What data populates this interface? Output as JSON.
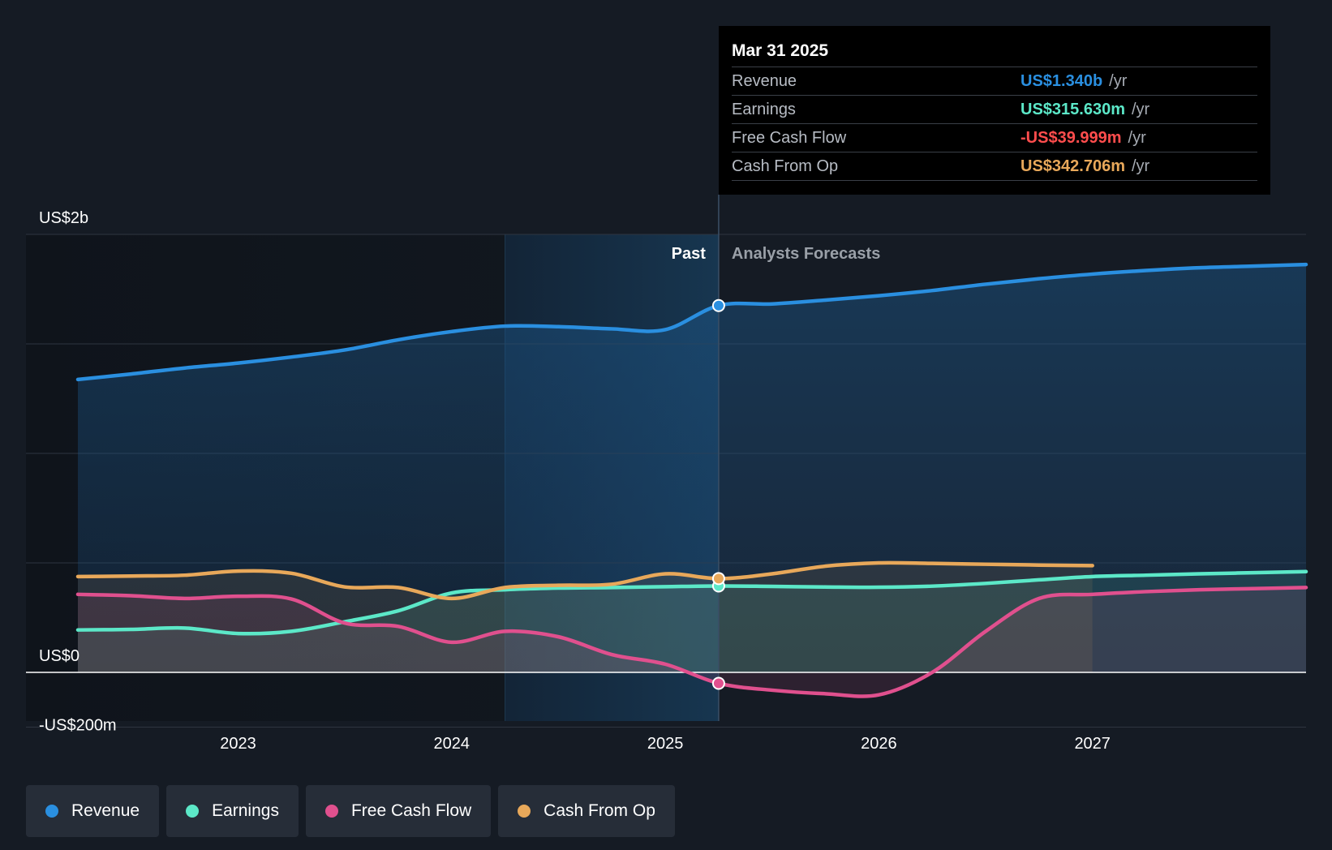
{
  "chart_data": {
    "type": "line",
    "x_unit": "year",
    "y_unit": "US$ millions",
    "ylim": [
      -200,
      1600
    ],
    "y_tick_labels": [
      {
        "value": 1600,
        "label": "US$2b"
      },
      {
        "value": 0,
        "label": "US$0"
      },
      {
        "value": -200,
        "label": "-US$200m"
      }
    ],
    "x_ticks": [
      2023,
      2024,
      2025,
      2026,
      2027
    ],
    "x_tick_labels": [
      "2023",
      "2024",
      "2025",
      "2026",
      "2027"
    ],
    "divider_x": 2025.25,
    "highlight_x_range": [
      2024.25,
      2025.25
    ],
    "past_label": "Past",
    "forecast_label": "Analysts Forecasts",
    "forecast_start_x": 2025.25,
    "series": [
      {
        "name": "Revenue",
        "color": "#2a8fe0",
        "x": [
          2022.25,
          2022.5,
          2022.75,
          2023.0,
          2023.25,
          2023.5,
          2023.75,
          2024.0,
          2024.25,
          2024.5,
          2024.75,
          2025.0,
          2025.25,
          2025.5,
          2025.75,
          2026.0,
          2026.25,
          2026.5,
          2026.75,
          2027.0,
          2027.25,
          2027.5,
          2027.75,
          2028.0
        ],
        "values": [
          1070,
          1090,
          1112,
          1130,
          1152,
          1178,
          1215,
          1245,
          1265,
          1263,
          1255,
          1252,
          1340,
          1346,
          1360,
          1376,
          1395,
          1418,
          1438,
          1455,
          1468,
          1478,
          1484,
          1490
        ]
      },
      {
        "name": "Earnings",
        "color": "#5ce8c8",
        "x": [
          2022.25,
          2022.5,
          2022.75,
          2023.0,
          2023.25,
          2023.5,
          2023.75,
          2024.0,
          2024.25,
          2024.5,
          2024.75,
          2025.0,
          2025.25,
          2025.5,
          2025.75,
          2026.0,
          2026.25,
          2026.5,
          2026.75,
          2027.0,
          2027.25,
          2027.5,
          2027.75,
          2028.0
        ],
        "values": [
          155,
          157,
          162,
          142,
          150,
          185,
          225,
          290,
          302,
          308,
          310,
          313,
          315.63,
          314,
          312,
          311,
          315,
          325,
          338,
          350,
          355,
          360,
          364,
          368
        ]
      },
      {
        "name": "Free Cash Flow",
        "color": "#e0508e",
        "x": [
          2022.25,
          2022.5,
          2022.75,
          2023.0,
          2023.25,
          2023.5,
          2023.75,
          2024.0,
          2024.25,
          2024.5,
          2024.75,
          2025.0,
          2025.25,
          2025.5,
          2025.75,
          2026.0,
          2026.25,
          2026.5,
          2026.75,
          2027.0,
          2027.25,
          2027.5,
          2027.75,
          2028.0
        ],
        "values": [
          285,
          280,
          270,
          278,
          268,
          180,
          168,
          110,
          150,
          130,
          65,
          30,
          -39.999,
          -65,
          -78,
          -82,
          0,
          150,
          270,
          285,
          295,
          302,
          306,
          310
        ]
      },
      {
        "name": "Cash From Op",
        "color": "#e8a85a",
        "x": [
          2022.25,
          2022.5,
          2022.75,
          2023.0,
          2023.25,
          2023.5,
          2023.75,
          2024.0,
          2024.25,
          2024.5,
          2024.75,
          2025.0,
          2025.25,
          2025.5,
          2025.75,
          2026.0,
          2026.25,
          2026.5,
          2026.75,
          2027.0
        ],
        "values": [
          350,
          352,
          355,
          370,
          362,
          312,
          310,
          270,
          310,
          318,
          322,
          360,
          342.706,
          360,
          388,
          400,
          398,
          395,
          392,
          390
        ]
      }
    ]
  },
  "tooltip": {
    "date": "Mar 31 2025",
    "rows": [
      {
        "label": "Revenue",
        "value": "US$1.340b",
        "unit": "/yr",
        "color": "#2a8fe0"
      },
      {
        "label": "Earnings",
        "value": "US$315.630m",
        "unit": "/yr",
        "color": "#5ce8c8"
      },
      {
        "label": "Free Cash Flow",
        "value": "-US$39.999m",
        "unit": "/yr",
        "color": "#ff4d4d"
      },
      {
        "label": "Cash From Op",
        "value": "US$342.706m",
        "unit": "/yr",
        "color": "#e8a85a"
      }
    ]
  },
  "legend": [
    {
      "label": "Revenue",
      "color": "#2a8fe0"
    },
    {
      "label": "Earnings",
      "color": "#5ce8c8"
    },
    {
      "label": "Free Cash Flow",
      "color": "#e0508e"
    },
    {
      "label": "Cash From Op",
      "color": "#e8a85a"
    }
  ]
}
